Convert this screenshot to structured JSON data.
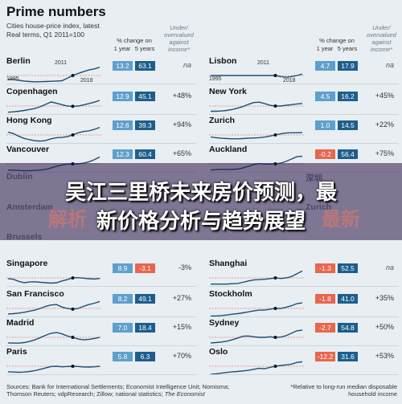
{
  "header": {
    "title": "Prime numbers",
    "subtitle1": "Cities house-price index, latest",
    "subtitle2": "Real terms, Q1 2011=100",
    "col_change": "% change on",
    "col_1yr": "1 year",
    "col_5yr": "5 years",
    "col_uo": "Under/ overvalued against income*"
  },
  "year_labels": {
    "start": "1995",
    "mid": "2011",
    "end": "2018"
  },
  "colors": {
    "positive_5yr": "#1d5e8c",
    "light_blue": "#5f9fcb",
    "negative": "#e8664c",
    "line": "#1b4f79",
    "ref": "#d44"
  },
  "chart_data": {
    "type": "line",
    "title": "Prime numbers",
    "subtitle": "Cities house-price index, latest",
    "ylabel": "Real terms, Q1 2011=100",
    "x": [
      "1995",
      "2011",
      "2018"
    ],
    "reference_value": 100,
    "cities": [
      {
        "name": "Berlin",
        "chg_1yr": "13.2",
        "chg_5yr": "63.1",
        "uo": "na",
        "series": [
          72,
          70,
          65,
          60,
          56,
          54,
          55,
          56,
          58,
          60,
          62,
          80,
          100,
          115,
          128,
          140,
          148,
          160
        ]
      },
      {
        "name": "Copenhagen",
        "chg_1yr": "12.9",
        "chg_5yr": "45.1",
        "uo": "+48%",
        "series": [
          55,
          58,
          62,
          68,
          75,
          82,
          95,
          112,
          130,
          120,
          110,
          100,
          98,
          100,
          108,
          118,
          128,
          140
        ]
      },
      {
        "name": "Hong Kong",
        "chg_1yr": "12.6",
        "chg_5yr": "39.3",
        "uo": "+94%",
        "series": [
          120,
          110,
          90,
          75,
          65,
          58,
          55,
          60,
          72,
          80,
          82,
          88,
          100,
          115,
          125,
          130,
          140,
          155
        ]
      },
      {
        "name": "Vancouver",
        "chg_1yr": "12.3",
        "chg_5yr": "60.4",
        "uo": "+65%",
        "series": [
          55,
          54,
          52,
          50,
          50,
          52,
          55,
          60,
          70,
          82,
          92,
          98,
          100,
          100,
          105,
          115,
          130,
          150
        ]
      },
      {
        "name": "Singapore",
        "chg_1yr": "8.9",
        "chg_5yr": "-3.1",
        "uo": "-3%",
        "series": [
          95,
          90,
          75,
          65,
          70,
          72,
          68,
          65,
          62,
          65,
          78,
          88,
          100,
          102,
          98,
          94,
          92,
          96
        ]
      },
      {
        "name": "San Francisco",
        "chg_1yr": "8.2",
        "chg_5yr": "49.1",
        "uo": "+27%",
        "series": [
          60,
          62,
          66,
          72,
          80,
          88,
          100,
          115,
          125,
          128,
          110,
          100,
          95,
          100,
          115,
          128,
          138,
          150
        ]
      },
      {
        "name": "Madrid",
        "chg_1yr": "7.0",
        "chg_5yr": "18.4",
        "uo": "+15%",
        "series": [
          60,
          58,
          58,
          62,
          70,
          82,
          98,
          115,
          130,
          135,
          125,
          110,
          100,
          88,
          82,
          85,
          92,
          100
        ]
      },
      {
        "name": "Paris",
        "chg_1yr": "5.8",
        "chg_5yr": "6.3",
        "uo": "+70%",
        "series": [
          60,
          58,
          56,
          58,
          62,
          68,
          78,
          88,
          98,
          100,
          96,
          98,
          100,
          98,
          95,
          94,
          96,
          100
        ]
      },
      {
        "name": "Lisbon",
        "chg_1yr": "4.7",
        "chg_5yr": "17.9",
        "uo": "na",
        "series": [
          100,
          100,
          100,
          100,
          100,
          100,
          100,
          100,
          100,
          100,
          100,
          100,
          100,
          92,
          88,
          92,
          100,
          110
        ]
      },
      {
        "name": "New York",
        "chg_1yr": "4.5",
        "chg_5yr": "16.2",
        "uo": "+45%",
        "series": [
          62,
          62,
          64,
          68,
          75,
          84,
          96,
          112,
          125,
          128,
          118,
          105,
          100,
          100,
          105,
          110,
          115,
          118
        ]
      },
      {
        "name": "Zurich",
        "chg_1yr": "1.0",
        "chg_5yr": "14.5",
        "uo": "+22%",
        "series": [
          85,
          80,
          76,
          74,
          72,
          72,
          74,
          76,
          78,
          80,
          84,
          92,
          100,
          108,
          114,
          116,
          116,
          117
        ]
      },
      {
        "name": "Auckland",
        "chg_1yr": "-0.2",
        "chg_5yr": "56.4",
        "uo": "+75%",
        "series": [
          55,
          58,
          60,
          60,
          60,
          62,
          70,
          82,
          95,
          102,
          98,
          98,
          100,
          105,
          118,
          135,
          152,
          155
        ]
      },
      {
        "name": "Shanghai",
        "chg_1yr": "-1.3",
        "chg_5yr": "52.5",
        "uo": "na",
        "series": [
          55,
          55,
          55,
          55,
          58,
          60,
          68,
          78,
          85,
          88,
          90,
          95,
          100,
          96,
          100,
          110,
          130,
          150
        ]
      },
      {
        "name": "Stockholm",
        "chg_1yr": "-1.8",
        "chg_5yr": "41.0",
        "uo": "+35%",
        "series": [
          45,
          45,
          48,
          52,
          58,
          62,
          68,
          75,
          82,
          88,
          88,
          95,
          100,
          100,
          108,
          120,
          135,
          140
        ]
      },
      {
        "name": "Sydney",
        "chg_1yr": "-2.7",
        "chg_5yr": "54.8",
        "uo": "+50%",
        "series": [
          60,
          62,
          66,
          72,
          82,
          95,
          108,
          110,
          104,
          100,
          100,
          104,
          100,
          102,
          112,
          130,
          148,
          152
        ]
      },
      {
        "name": "Oslo",
        "chg_1yr": "-12.2",
        "chg_5yr": "31.6",
        "uo": "+53%",
        "series": [
          42,
          45,
          50,
          55,
          60,
          62,
          66,
          70,
          78,
          85,
          82,
          92,
          100,
          106,
          110,
          115,
          128,
          132
        ]
      }
    ]
  },
  "footer": {
    "sources": "Sources: Bank for International Settlements; Economist Intelligence Unit; Nomisma; Thomson Reuters; vdpResearch; Zillow; national statistics;",
    "sources_tail": "The Economist",
    "note": "*Relative to long-run median disposable household income"
  },
  "banner": {
    "line1": "吴江三里桥未来房价预测，最",
    "line2": "新价格分析与趋势展望",
    "ghost_left": "解析",
    "ghost_right": "最新"
  },
  "partial_cities": {
    "left1": "Dublin",
    "left2": "Amsterdam",
    "left3": "Brussels",
    "right1": "深圳",
    "right2": "Zurich"
  }
}
